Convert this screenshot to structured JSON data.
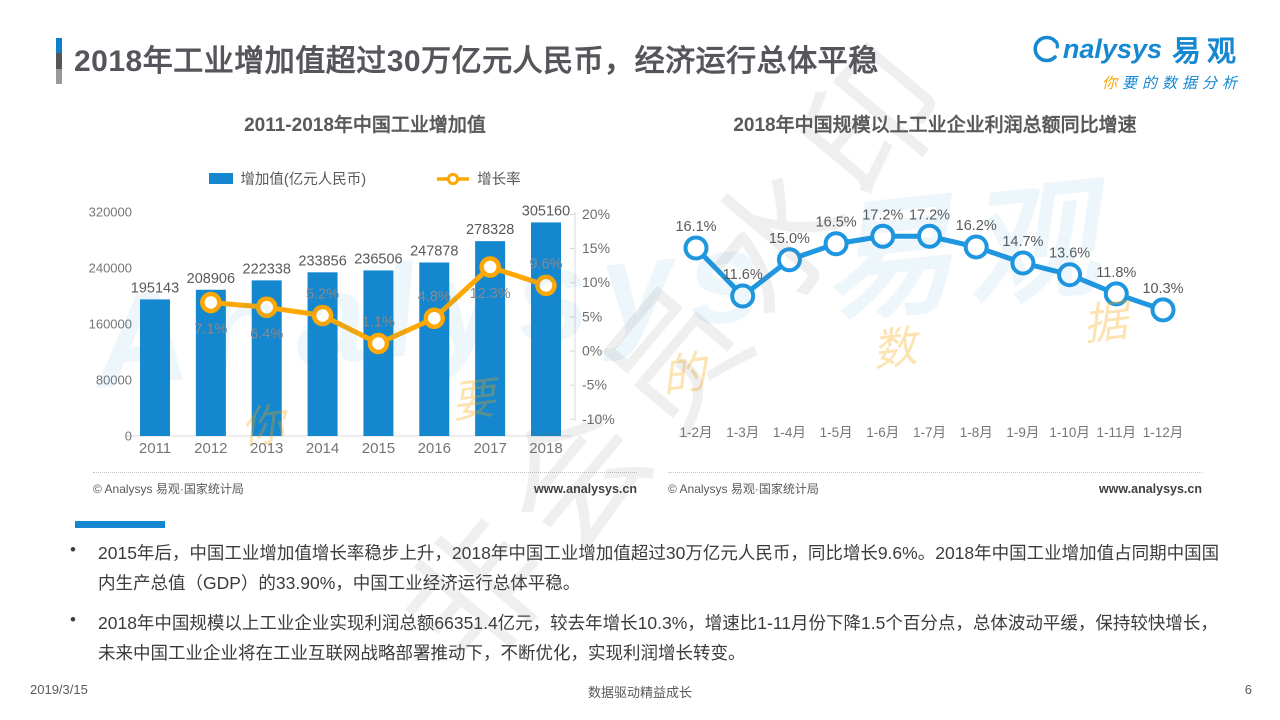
{
  "header": {
    "title": "2018年工业增加值超过30万亿元人民币，经济运行总体平稳",
    "logo_brand_latin": "nalysys",
    "logo_brand_cn": "易观",
    "logo_tagline_first": "你",
    "logo_tagline_rest": "要的数据分析"
  },
  "chart_data": [
    {
      "type": "bar",
      "title": "2011-2018年中国工业增加值",
      "categories": [
        "2011",
        "2012",
        "2013",
        "2014",
        "2015",
        "2016",
        "2017",
        "2018"
      ],
      "series": [
        {
          "name": "增加值(亿元人民币)",
          "type": "bar",
          "values": [
            195143,
            208906,
            222338,
            233856,
            236506,
            247878,
            278328,
            305160
          ],
          "color": "#1487CF"
        },
        {
          "name": "增长率",
          "type": "line",
          "values": [
            null,
            7.1,
            6.4,
            5.2,
            1.1,
            4.8,
            12.3,
            9.6
          ],
          "label_positions": [
            "",
            "below",
            "below",
            "above",
            "above",
            "above",
            "below",
            "above"
          ],
          "color": "#FFA702"
        }
      ],
      "left_axis_ticks": [
        0,
        80000,
        160000,
        240000,
        320000
      ],
      "left_axis_max": 320000,
      "right_axis_ticks": [
        20,
        15,
        10,
        5,
        0,
        -5,
        -10
      ],
      "right_axis_range": [
        -10,
        20
      ],
      "legend_position": "top",
      "grid": false,
      "source": "© Analysys 易观·国家统计局",
      "website": "www.analysys.cn"
    },
    {
      "type": "line",
      "title": "2018年中国规模以上工业企业利润总额同比增速",
      "categories": [
        "1-2月",
        "1-3月",
        "1-4月",
        "1-5月",
        "1-6月",
        "1-7月",
        "1-8月",
        "1-9月",
        "1-10月",
        "1-11月",
        "1-12月"
      ],
      "values": [
        16.1,
        11.6,
        15.0,
        16.5,
        17.2,
        17.2,
        16.2,
        14.7,
        13.6,
        11.8,
        10.3
      ],
      "color": "#1E96E0",
      "grid": false,
      "axes_hidden": true,
      "source": "© Analysys 易观·国家统计局",
      "website": "www.analysys.cn"
    }
  ],
  "bullets": [
    "2015年后，中国工业增加值增长率稳步上升，2018年中国工业增加值超过30万亿元人民币，同比增长9.6%。2018年中国工业增加值占同期中国国内生产总值（GDP）的33.90%，中国工业经济运行总体平稳。",
    "2018年中国规模以上工业企业实现利润总额66351.4亿元，较去年增长10.3%，增速比1-11月份下降1.5个百分点，总体波动平缓，保持较快增长，未来中国工业企业将在工业互联网战略部署推动下，不断优化，实现利润增长转变。"
  ],
  "footer": {
    "date": "2019/3/15",
    "motto": "数据驱动精益成长",
    "page": "6"
  },
  "watermarks": {
    "brand": "Analysys 易观",
    "tagline": "你 要 的 数 据 分 析",
    "member": "非会员水印"
  },
  "colors": {
    "brand_blue": "#1588D1",
    "bar_blue": "#1487CF",
    "line_orange": "#FFA702",
    "line_blue": "#1E96E0",
    "accent_orange": "#F7A600"
  }
}
